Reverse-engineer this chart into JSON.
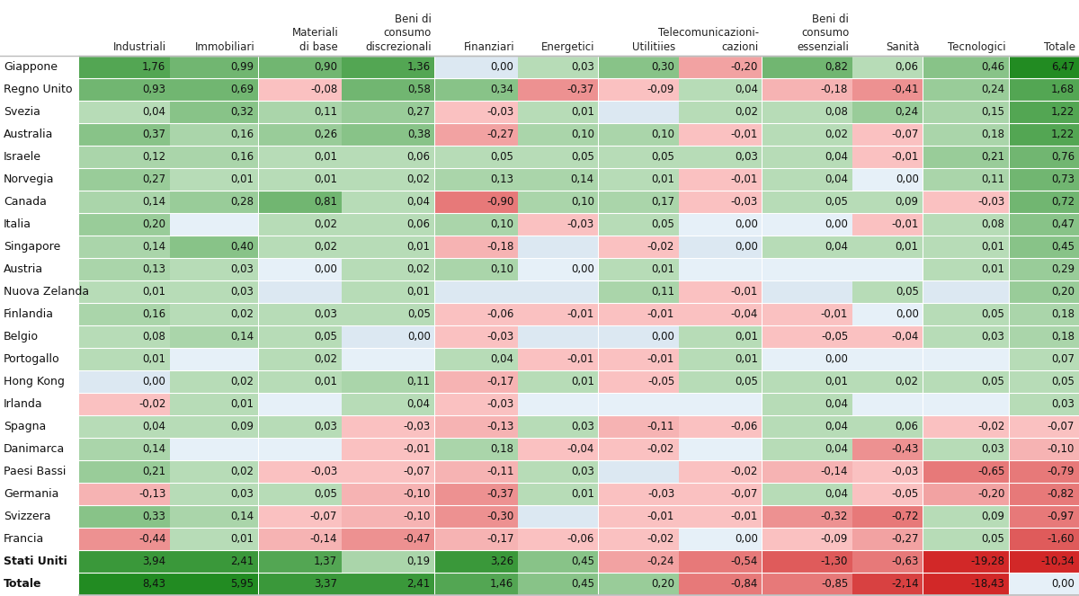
{
  "col_headers": [
    [
      "Industriali"
    ],
    [
      "Immobiliari"
    ],
    [
      "Materiali",
      "di base"
    ],
    [
      "Beni di",
      "consumo",
      "discrezionali"
    ],
    [
      "Finanziari"
    ],
    [
      "Energetici"
    ],
    [
      "Utilitiies"
    ],
    [
      "Telecomunicazioni-",
      "cazioni"
    ],
    [
      "Beni di",
      "consumo",
      "essenziali"
    ],
    [
      "Sanità"
    ],
    [
      "Tecnologici"
    ],
    [
      "Totale"
    ]
  ],
  "rows": [
    "Giappone",
    "Regno Unito",
    "Svezia",
    "Australia",
    "Israele",
    "Norvegia",
    "Canada",
    "Italia",
    "Singapore",
    "Austria",
    "Nuova Zelanda",
    "Finlandia",
    "Belgio",
    "Portogallo",
    "Hong Kong",
    "Irlanda",
    "Spagna",
    "Danimarca",
    "Paesi Bassi",
    "Germania",
    "Svizzera",
    "Francia",
    "Stati Uniti",
    "Totale"
  ],
  "data": [
    [
      1.76,
      0.99,
      0.9,
      1.36,
      0.0,
      0.03,
      0.3,
      -0.2,
      0.82,
      0.06,
      0.46,
      6.47
    ],
    [
      0.93,
      0.69,
      -0.08,
      0.58,
      0.34,
      -0.37,
      -0.09,
      0.04,
      -0.18,
      -0.41,
      0.24,
      1.68
    ],
    [
      0.04,
      0.32,
      0.11,
      0.27,
      -0.03,
      0.01,
      null,
      0.02,
      0.08,
      0.24,
      0.15,
      1.22
    ],
    [
      0.37,
      0.16,
      0.26,
      0.38,
      -0.27,
      0.1,
      0.1,
      -0.01,
      0.02,
      -0.07,
      0.18,
      1.22
    ],
    [
      0.12,
      0.16,
      0.01,
      0.06,
      0.05,
      0.05,
      0.05,
      0.03,
      0.04,
      -0.01,
      0.21,
      0.76
    ],
    [
      0.27,
      0.01,
      0.01,
      0.02,
      0.13,
      0.14,
      0.01,
      -0.01,
      0.04,
      0.0,
      0.11,
      0.73
    ],
    [
      0.14,
      0.28,
      0.81,
      0.04,
      -0.9,
      0.1,
      0.17,
      -0.03,
      0.05,
      0.09,
      -0.03,
      0.72
    ],
    [
      0.2,
      null,
      0.02,
      0.06,
      0.1,
      -0.03,
      0.05,
      0.0,
      0.0,
      -0.01,
      0.08,
      0.47
    ],
    [
      0.14,
      0.4,
      0.02,
      0.01,
      -0.18,
      null,
      -0.02,
      0.0,
      0.04,
      0.01,
      0.01,
      0.45
    ],
    [
      0.13,
      0.03,
      0.0,
      0.02,
      0.1,
      0.0,
      0.01,
      null,
      null,
      null,
      0.01,
      0.29
    ],
    [
      0.01,
      0.03,
      null,
      0.01,
      null,
      null,
      0.11,
      -0.01,
      null,
      0.05,
      null,
      0.2
    ],
    [
      0.16,
      0.02,
      0.03,
      0.05,
      -0.06,
      -0.01,
      -0.01,
      -0.04,
      -0.01,
      0.0,
      0.05,
      0.18
    ],
    [
      0.08,
      0.14,
      0.05,
      0.0,
      -0.03,
      null,
      0.0,
      0.01,
      -0.05,
      -0.04,
      0.03,
      0.18
    ],
    [
      0.01,
      null,
      0.02,
      null,
      0.04,
      -0.01,
      -0.01,
      0.01,
      0.0,
      null,
      null,
      0.07
    ],
    [
      0.0,
      0.02,
      0.01,
      0.11,
      -0.17,
      0.01,
      -0.05,
      0.05,
      0.01,
      0.02,
      0.05,
      0.05
    ],
    [
      -0.02,
      0.01,
      null,
      0.04,
      -0.03,
      null,
      null,
      null,
      0.04,
      null,
      null,
      0.03
    ],
    [
      0.04,
      0.09,
      0.03,
      -0.03,
      -0.13,
      0.03,
      -0.11,
      -0.06,
      0.04,
      0.06,
      -0.02,
      -0.07
    ],
    [
      0.14,
      null,
      null,
      -0.01,
      0.18,
      -0.04,
      -0.02,
      null,
      0.04,
      -0.43,
      0.03,
      -0.1
    ],
    [
      0.21,
      0.02,
      -0.03,
      -0.07,
      -0.11,
      0.03,
      null,
      -0.02,
      -0.14,
      -0.03,
      -0.65,
      -0.79
    ],
    [
      -0.13,
      0.03,
      0.05,
      -0.1,
      -0.37,
      0.01,
      -0.03,
      -0.07,
      0.04,
      -0.05,
      -0.2,
      -0.82
    ],
    [
      0.33,
      0.14,
      -0.07,
      -0.1,
      -0.3,
      null,
      -0.01,
      -0.01,
      -0.32,
      -0.72,
      0.09,
      -0.97
    ],
    [
      -0.44,
      0.01,
      -0.14,
      -0.47,
      -0.17,
      -0.06,
      -0.02,
      0.0,
      -0.09,
      -0.27,
      0.05,
      -1.6
    ],
    [
      3.94,
      2.41,
      1.37,
      0.19,
      3.26,
      0.45,
      -0.24,
      -0.54,
      -1.3,
      -0.63,
      -19.28,
      -10.34
    ],
    [
      8.43,
      5.95,
      3.37,
      2.41,
      1.46,
      0.45,
      0.2,
      -0.84,
      -0.85,
      -2.14,
      -18.43,
      0.0
    ]
  ],
  "bg_even": "#dce8f2",
  "bg_odd": "#e8f0f8",
  "green_dark": [
    34,
    139,
    34
  ],
  "green_light": [
    144,
    238,
    144
  ],
  "red_dark": [
    220,
    50,
    50
  ],
  "red_light": [
    255,
    182,
    193
  ],
  "header_bg": "#ffffff",
  "font_size_data": 8.5,
  "font_size_header": 8.5,
  "font_size_rowlabel": 9.0
}
